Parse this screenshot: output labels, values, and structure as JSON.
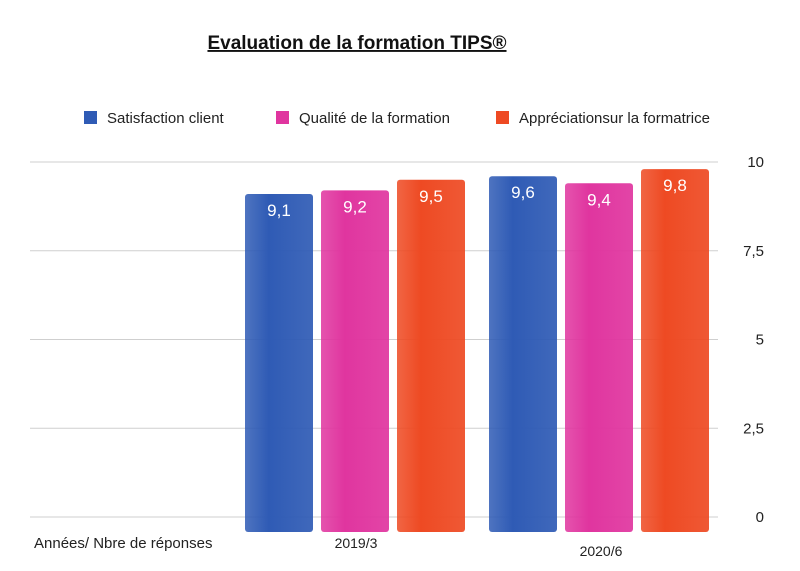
{
  "chart_data": {
    "type": "bar",
    "title": "Evaluation de la formation TIPS®",
    "xlabel": "Années/ Nbre de réponses",
    "ylabel": "",
    "categories": [
      "2019/3",
      "2020/6"
    ],
    "series": [
      {
        "name": "Satisfaction client",
        "color": "#2f5bb5",
        "values": [
          9.1,
          9.6
        ],
        "labels": [
          "9,1",
          "9,6"
        ]
      },
      {
        "name": "Qualité de la formation",
        "color": "#e0359f",
        "values": [
          9.2,
          9.4
        ],
        "labels": [
          "9,2",
          "9,4"
        ]
      },
      {
        "name": "Appréciationsur la formatrice",
        "color": "#ee4a23",
        "values": [
          9.5,
          9.8
        ],
        "labels": [
          "9,5",
          "9,8"
        ]
      }
    ],
    "ylim": [
      0,
      10
    ],
    "yticks": [
      0,
      2.5,
      5,
      7.5,
      10
    ],
    "ytick_labels": [
      "0",
      "2,5",
      "5",
      "7,5",
      "10"
    ],
    "grid": true,
    "legend": "top",
    "axis_side": "right"
  }
}
